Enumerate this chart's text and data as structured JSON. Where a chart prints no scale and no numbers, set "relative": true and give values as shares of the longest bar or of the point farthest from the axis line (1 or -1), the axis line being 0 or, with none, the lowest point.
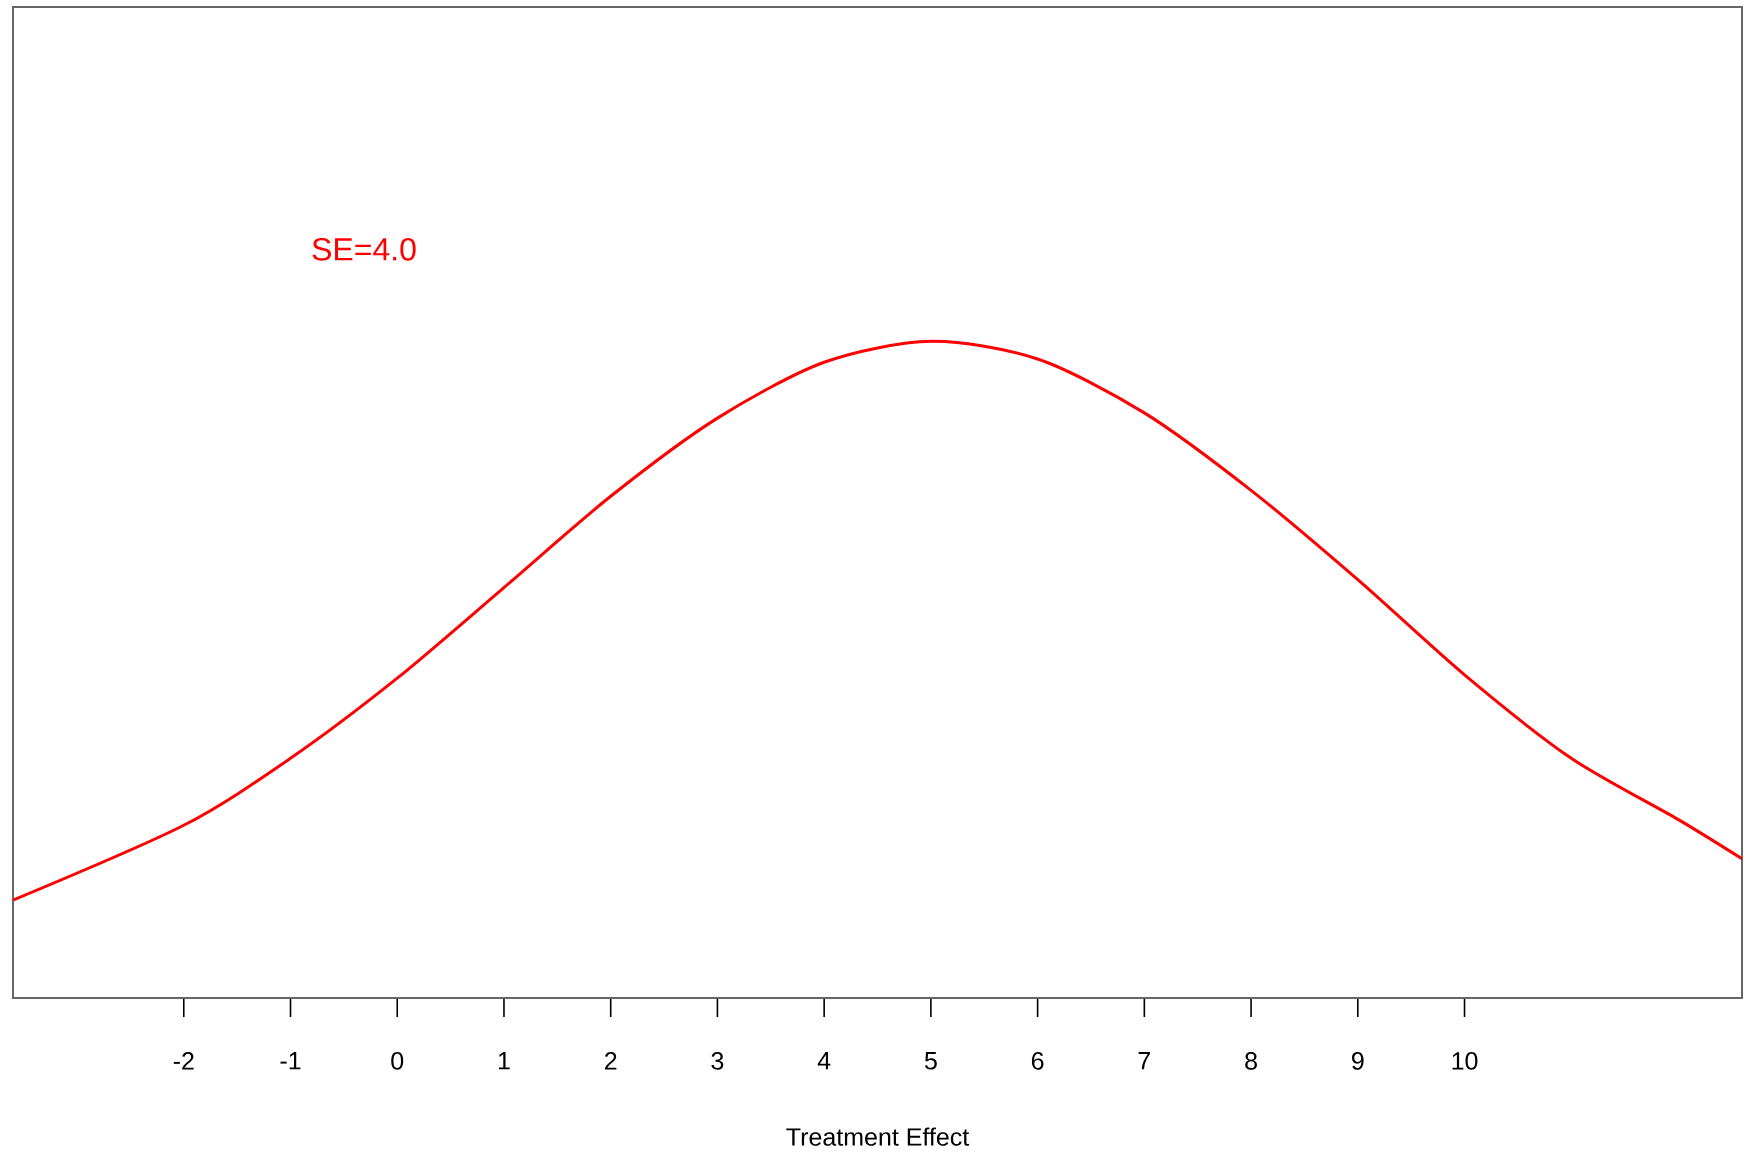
{
  "chart_data": {
    "type": "line",
    "relative": true,
    "xlabel": "Treatment Effect",
    "xlim": [
      -3.6,
      12.6
    ],
    "xticks": [
      -2,
      -1,
      0,
      1,
      2,
      3,
      4,
      5,
      6,
      7,
      8,
      9,
      10
    ],
    "grid": false,
    "marker": "none",
    "line_style": "solid",
    "annotations": [
      "SE=4.0"
    ],
    "series": [
      {
        "color": "#ff0000",
        "x": [
          -3.6,
          -2,
          -1,
          0,
          1,
          2,
          3,
          4,
          5,
          6,
          7,
          8,
          9,
          10,
          11,
          12,
          12.6
        ],
        "values": [
          0.149,
          0.263,
          0.365,
          0.487,
          0.625,
          0.764,
          0.883,
          0.968,
          1,
          0.973,
          0.891,
          0.773,
          0.637,
          0.492,
          0.365,
          0.272,
          0.212
        ]
      }
    ]
  }
}
